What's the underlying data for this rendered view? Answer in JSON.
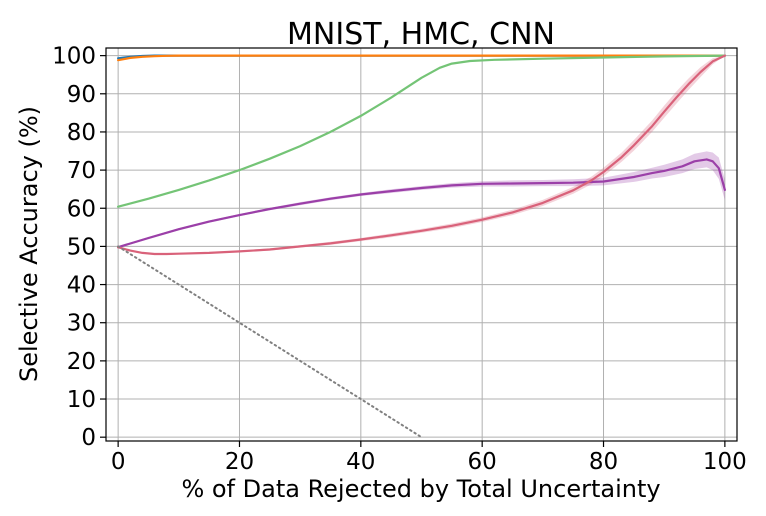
{
  "chart_data": {
    "type": "line",
    "title": "MNIST, HMC, CNN",
    "xlabel": "% of Data Rejected by Total Uncertainty",
    "ylabel": "Selective Accuracy (%)",
    "xlim": [
      -2,
      102
    ],
    "ylim": [
      -1,
      102
    ],
    "xticks": [
      0,
      20,
      40,
      60,
      80,
      100
    ],
    "xtick_labels": [
      "0",
      "20",
      "40",
      "60",
      "80",
      "100"
    ],
    "yticks": [
      0,
      10,
      20,
      30,
      40,
      50,
      60,
      70,
      80,
      90,
      100
    ],
    "ytick_labels": [
      "0",
      "10",
      "20",
      "30",
      "40",
      "50",
      "60",
      "70",
      "80",
      "90",
      "100"
    ],
    "grid": true,
    "legend": "none",
    "series": [
      {
        "color": "#1f77b4",
        "style": "solid",
        "band": false,
        "points": [
          [
            0,
            99.3
          ],
          [
            2,
            99.7
          ],
          [
            4,
            99.9
          ],
          [
            6,
            100
          ],
          [
            10,
            100
          ],
          [
            50,
            100
          ],
          [
            100,
            100
          ]
        ]
      },
      {
        "color": "#ff7f0e",
        "style": "solid",
        "band": false,
        "points": [
          [
            0,
            98.8
          ],
          [
            1,
            99.1
          ],
          [
            2,
            99.4
          ],
          [
            4,
            99.7
          ],
          [
            6,
            99.85
          ],
          [
            8,
            99.95
          ],
          [
            10,
            100
          ],
          [
            50,
            100
          ],
          [
            100,
            100
          ]
        ]
      },
      {
        "color": "#74c476",
        "style": "solid",
        "band": false,
        "points": [
          [
            0,
            60.4
          ],
          [
            5,
            62.5
          ],
          [
            10,
            64.8
          ],
          [
            15,
            67.3
          ],
          [
            20,
            70.0
          ],
          [
            25,
            73.0
          ],
          [
            30,
            76.3
          ],
          [
            35,
            80.0
          ],
          [
            40,
            84.2
          ],
          [
            45,
            89.0
          ],
          [
            50,
            94.2
          ],
          [
            53,
            96.8
          ],
          [
            55,
            97.9
          ],
          [
            58,
            98.6
          ],
          [
            62,
            98.9
          ],
          [
            70,
            99.2
          ],
          [
            80,
            99.5
          ],
          [
            90,
            99.8
          ],
          [
            100,
            100
          ]
        ]
      },
      {
        "color": "#9b3fa8",
        "style": "solid",
        "band": true,
        "points": [
          [
            0,
            49.8
          ],
          [
            5,
            52.2
          ],
          [
            10,
            54.5
          ],
          [
            15,
            56.5
          ],
          [
            20,
            58.2
          ],
          [
            25,
            59.8
          ],
          [
            30,
            61.2
          ],
          [
            35,
            62.5
          ],
          [
            40,
            63.6
          ],
          [
            45,
            64.5
          ],
          [
            50,
            65.3
          ],
          [
            55,
            66.0
          ],
          [
            60,
            66.4
          ],
          [
            65,
            66.5
          ],
          [
            70,
            66.6
          ],
          [
            75,
            66.7
          ],
          [
            80,
            67.0
          ],
          [
            85,
            68.2
          ],
          [
            88,
            69.2
          ],
          [
            90,
            69.8
          ],
          [
            93,
            71.0
          ],
          [
            95,
            72.3
          ],
          [
            97,
            72.8
          ],
          [
            98,
            72.3
          ],
          [
            99,
            70.5
          ],
          [
            100,
            64.8
          ]
        ],
        "upper": [
          [
            0,
            50.0
          ],
          [
            5,
            52.5
          ],
          [
            10,
            54.8
          ],
          [
            15,
            56.8
          ],
          [
            20,
            58.5
          ],
          [
            25,
            60.1
          ],
          [
            30,
            61.6
          ],
          [
            35,
            62.9
          ],
          [
            40,
            64.0
          ],
          [
            45,
            65.0
          ],
          [
            50,
            65.8
          ],
          [
            55,
            66.6
          ],
          [
            60,
            67.1
          ],
          [
            65,
            67.3
          ],
          [
            70,
            67.4
          ],
          [
            75,
            67.6
          ],
          [
            80,
            68.0
          ],
          [
            85,
            69.5
          ],
          [
            88,
            70.6
          ],
          [
            90,
            71.4
          ],
          [
            93,
            72.8
          ],
          [
            95,
            74.3
          ],
          [
            97,
            74.9
          ],
          [
            98,
            74.6
          ],
          [
            99,
            73.3
          ],
          [
            100,
            67.5
          ]
        ],
        "lower": [
          [
            0,
            49.6
          ],
          [
            5,
            51.9
          ],
          [
            10,
            54.2
          ],
          [
            15,
            56.2
          ],
          [
            20,
            57.9
          ],
          [
            25,
            59.5
          ],
          [
            30,
            60.8
          ],
          [
            35,
            62.1
          ],
          [
            40,
            63.2
          ],
          [
            45,
            64.0
          ],
          [
            50,
            64.8
          ],
          [
            55,
            65.4
          ],
          [
            60,
            65.7
          ],
          [
            65,
            65.7
          ],
          [
            70,
            65.8
          ],
          [
            75,
            65.8
          ],
          [
            80,
            66.0
          ],
          [
            85,
            66.9
          ],
          [
            88,
            67.8
          ],
          [
            90,
            68.2
          ],
          [
            93,
            69.2
          ],
          [
            95,
            70.3
          ],
          [
            97,
            70.7
          ],
          [
            98,
            70.0
          ],
          [
            99,
            67.7
          ],
          [
            100,
            62.1
          ]
        ]
      },
      {
        "color": "#d9627a",
        "style": "solid",
        "band": true,
        "points": [
          [
            0,
            49.8
          ],
          [
            2,
            48.9
          ],
          [
            4,
            48.3
          ],
          [
            6,
            48.0
          ],
          [
            8,
            48.0
          ],
          [
            10,
            48.1
          ],
          [
            15,
            48.3
          ],
          [
            20,
            48.7
          ],
          [
            25,
            49.2
          ],
          [
            30,
            50.0
          ],
          [
            35,
            50.8
          ],
          [
            40,
            51.8
          ],
          [
            45,
            52.9
          ],
          [
            50,
            54.1
          ],
          [
            55,
            55.4
          ],
          [
            60,
            57.0
          ],
          [
            65,
            58.9
          ],
          [
            70,
            61.4
          ],
          [
            75,
            64.7
          ],
          [
            78,
            67.3
          ],
          [
            80,
            69.5
          ],
          [
            83,
            73.4
          ],
          [
            85,
            76.5
          ],
          [
            88,
            81.5
          ],
          [
            90,
            85.3
          ],
          [
            92,
            89.0
          ],
          [
            94,
            92.5
          ],
          [
            96,
            95.7
          ],
          [
            98,
            98.5
          ],
          [
            100,
            100
          ]
        ],
        "upper": [
          [
            0,
            49.9
          ],
          [
            2,
            49.1
          ],
          [
            4,
            48.5
          ],
          [
            6,
            48.2
          ],
          [
            8,
            48.2
          ],
          [
            10,
            48.3
          ],
          [
            15,
            48.5
          ],
          [
            20,
            48.9
          ],
          [
            25,
            49.5
          ],
          [
            30,
            50.3
          ],
          [
            35,
            51.2
          ],
          [
            40,
            52.2
          ],
          [
            45,
            53.4
          ],
          [
            50,
            54.6
          ],
          [
            55,
            56.0
          ],
          [
            60,
            57.6
          ],
          [
            65,
            59.6
          ],
          [
            70,
            62.2
          ],
          [
            75,
            65.6
          ],
          [
            78,
            68.3
          ],
          [
            80,
            70.6
          ],
          [
            83,
            74.6
          ],
          [
            85,
            77.9
          ],
          [
            88,
            83.0
          ],
          [
            90,
            86.9
          ],
          [
            92,
            90.6
          ],
          [
            94,
            94.0
          ],
          [
            96,
            97.0
          ],
          [
            98,
            99.3
          ],
          [
            100,
            100
          ]
        ],
        "lower": [
          [
            0,
            49.7
          ],
          [
            2,
            48.7
          ],
          [
            4,
            48.1
          ],
          [
            6,
            47.8
          ],
          [
            8,
            47.8
          ],
          [
            10,
            47.9
          ],
          [
            15,
            48.1
          ],
          [
            20,
            48.5
          ],
          [
            25,
            48.9
          ],
          [
            30,
            49.7
          ],
          [
            35,
            50.4
          ],
          [
            40,
            51.4
          ],
          [
            45,
            52.4
          ],
          [
            50,
            53.6
          ],
          [
            55,
            54.8
          ],
          [
            60,
            56.4
          ],
          [
            65,
            58.2
          ],
          [
            70,
            60.6
          ],
          [
            75,
            63.8
          ],
          [
            78,
            66.3
          ],
          [
            80,
            68.4
          ],
          [
            83,
            72.2
          ],
          [
            85,
            75.1
          ],
          [
            88,
            80.0
          ],
          [
            90,
            83.7
          ],
          [
            92,
            87.4
          ],
          [
            94,
            91.0
          ],
          [
            96,
            94.4
          ],
          [
            98,
            97.7
          ],
          [
            100,
            100
          ]
        ]
      },
      {
        "color": "#808080",
        "style": "dotted",
        "band": false,
        "points": [
          [
            0,
            50
          ],
          [
            50,
            0
          ]
        ]
      }
    ]
  }
}
